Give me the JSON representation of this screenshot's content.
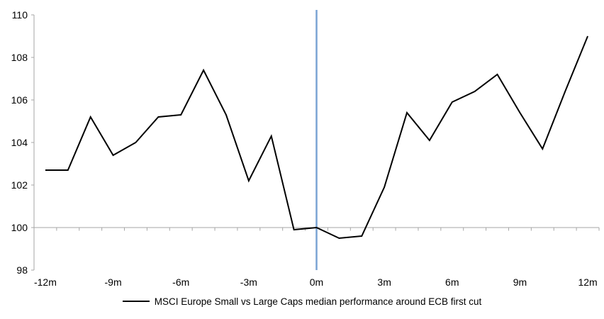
{
  "chart_data": {
    "type": "line",
    "title": "",
    "xlabel": "",
    "ylabel": "",
    "x": [
      -12,
      -11,
      -10,
      -9,
      -8,
      -7,
      -6,
      -5,
      -4,
      -3,
      -2,
      -1,
      0,
      1,
      2,
      3,
      4,
      5,
      6,
      7,
      8,
      9,
      10,
      11,
      12
    ],
    "series": [
      {
        "name": "MSCI Europe Small vs Large Caps median performance around ECB first cut",
        "color": "#000000",
        "stroke_width": 2,
        "values": [
          102.7,
          102.7,
          105.2,
          103.4,
          104.0,
          105.2,
          105.3,
          107.4,
          105.3,
          102.2,
          104.3,
          99.9,
          100.0,
          99.5,
          99.6,
          101.9,
          105.4,
          104.1,
          105.9,
          106.4,
          107.2,
          105.4,
          103.7,
          106.4,
          109.0
        ]
      }
    ],
    "x_ticks": [
      {
        "value": -12,
        "label": "-12m"
      },
      {
        "value": -9,
        "label": "-9m"
      },
      {
        "value": -6,
        "label": "-6m"
      },
      {
        "value": -3,
        "label": "-3m"
      },
      {
        "value": 0,
        "label": "0m"
      },
      {
        "value": 3,
        "label": "3m"
      },
      {
        "value": 6,
        "label": "6m"
      },
      {
        "value": 9,
        "label": "9m"
      },
      {
        "value": 12,
        "label": "12m"
      }
    ],
    "y_ticks": [
      {
        "value": 98,
        "label": "98"
      },
      {
        "value": 100,
        "label": "100"
      },
      {
        "value": 102,
        "label": "102"
      },
      {
        "value": 104,
        "label": "104"
      },
      {
        "value": 106,
        "label": "106"
      },
      {
        "value": 108,
        "label": "108"
      },
      {
        "value": 110,
        "label": "110"
      }
    ],
    "xlim": [
      -12.5,
      12.5
    ],
    "ylim": [
      98,
      110
    ],
    "x_minor_tick_step": 1,
    "grid": false,
    "baseline": {
      "y": 100,
      "color": "#a6a6a6"
    },
    "event_line": {
      "x": 0,
      "color": "#7aa4d4",
      "width": 2.5
    },
    "axis_color": "#a6a6a6",
    "text_color": "#000000",
    "tick_font_size": 14,
    "legend": {
      "position": "bottom-center"
    }
  }
}
